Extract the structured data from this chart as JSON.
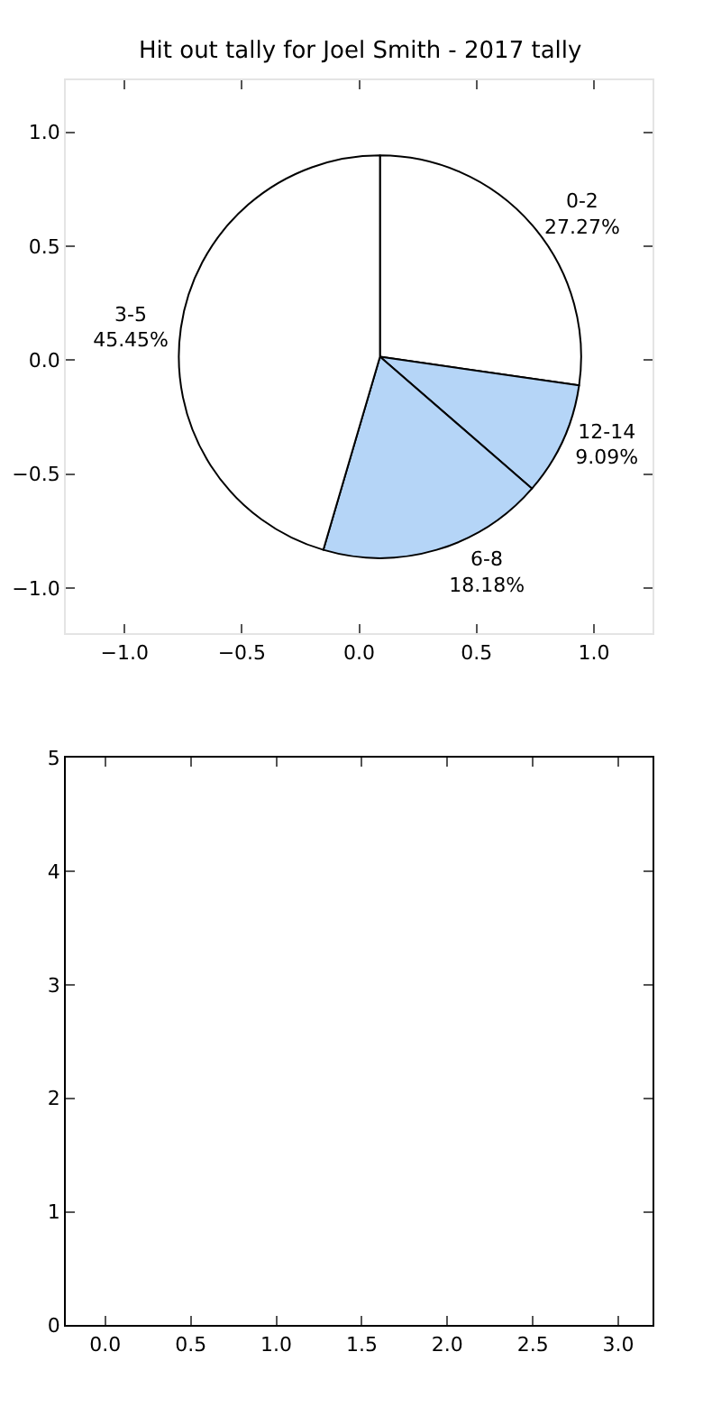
{
  "chart_data": [
    {
      "type": "pie",
      "title": "Hit out tally for Joel Smith - 2017 tally",
      "categories": [
        "0-2",
        "12-14",
        "6-8",
        "3-5"
      ],
      "values": [
        27.27,
        9.09,
        18.18,
        45.45
      ],
      "value_labels": [
        "27.27%",
        "9.09%",
        "18.18%",
        "45.45%"
      ],
      "colors": [
        "#ffffff",
        "#b5d5f7",
        "#b5d5f7",
        "#ffffff"
      ],
      "legend": false
    },
    {
      "type": "scatter",
      "xlim": [
        -1.25,
        1.25
      ],
      "ylim": [
        -1.2,
        1.23
      ],
      "xticks": [
        {
          "value": -1,
          "label": "−1.0"
        },
        {
          "value": -0.5,
          "label": "−0.5"
        },
        {
          "value": 0,
          "label": "0.0"
        },
        {
          "value": 0.5,
          "label": "0.5"
        },
        {
          "value": 1,
          "label": "1.0"
        }
      ],
      "yticks": [
        {
          "value": -1,
          "label": "−1.0"
        },
        {
          "value": -0.5,
          "label": "−0.5"
        },
        {
          "value": 0,
          "label": "0.0"
        },
        {
          "value": 0.5,
          "label": "0.5"
        },
        {
          "value": 1,
          "label": "1.0"
        }
      ],
      "legend": false
    },
    {
      "type": "scatter",
      "xlim": [
        -0.23,
        3.2
      ],
      "ylim": [
        0,
        5
      ],
      "xticks": [
        {
          "value": 0,
          "label": "0.0"
        },
        0.5,
        {
          "value": 1,
          "label": "1.0"
        },
        1.5,
        {
          "value": 2,
          "label": "2.0"
        },
        2.5,
        {
          "value": 3,
          "label": "3.0"
        }
      ],
      "yticks": [
        0,
        1,
        2,
        3,
        4,
        5
      ],
      "legend": false
    }
  ]
}
